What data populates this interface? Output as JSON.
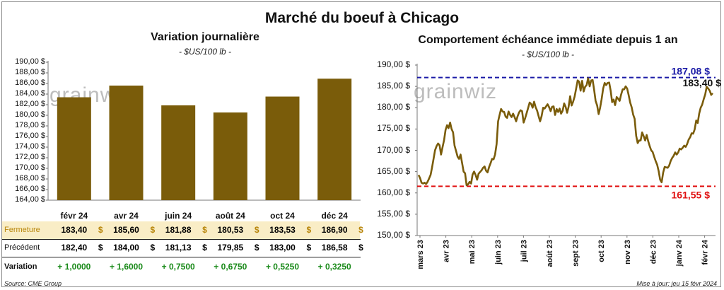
{
  "title": "Marché du boeuf à Chicago",
  "left": {
    "title": "Variation journalière",
    "subtitle": "- $US/100 lb -",
    "watermark": "grainwiz",
    "chart_data": {
      "type": "bar",
      "categories": [
        "févr 24",
        "avr 24",
        "juin 24",
        "août 24",
        "oct 24",
        "déc 24"
      ],
      "values": [
        183.4,
        185.6,
        181.88,
        180.53,
        183.53,
        186.9
      ],
      "ylim": [
        164,
        190
      ],
      "ytick_step": 2,
      "ytick_labels": [
        "164,00 $",
        "166,00 $",
        "168,00 $",
        "170,00 $",
        "172,00 $",
        "174,00 $",
        "176,00 $",
        "178,00 $",
        "180,00 $",
        "182,00 $",
        "184,00 $",
        "186,00 $",
        "188,00 $",
        "190,00 $"
      ],
      "bar_color": "#7a5c0a"
    },
    "table": {
      "rows": [
        {
          "label": "Fermeture",
          "unit": "$",
          "values": [
            "183,40",
            "185,60",
            "181,88",
            "180,53",
            "183,53",
            "186,90"
          ]
        },
        {
          "label": "Précédent",
          "unit": "$",
          "values": [
            "182,40",
            "184,00",
            "181,13",
            "179,85",
            "183,00",
            "186,58"
          ]
        },
        {
          "label": "Variation",
          "unit": "",
          "values": [
            "+ 1,0000",
            "+ 1,6000",
            "+ 0,7500",
            "+ 0,6750",
            "+ 0,5250",
            "+ 0,3250"
          ]
        }
      ],
      "highlight_color": "#f9edc6",
      "label_color": "#b8860b",
      "positive_color": "#1a8a1a"
    }
  },
  "right": {
    "title": "Comportement  échéance immédiate depuis 1 an",
    "subtitle": "- $US/100 lb -",
    "watermark": "grainwiz",
    "chart_data": {
      "type": "line",
      "ylim": [
        150,
        190
      ],
      "ytick_labels": [
        "150,00 $",
        "155,00 $",
        "160,00 $",
        "165,00 $",
        "170,00 $",
        "175,00 $",
        "180,00 $",
        "185,00 $",
        "190,00 $"
      ],
      "x_labels": [
        "mars 23",
        "avr 23",
        "mai 23",
        "juin 23",
        "juil 23",
        "août 23",
        "sept 23",
        "oct 23",
        "nov 23",
        "déc 23",
        "janv 24",
        "févr 24"
      ],
      "line_color": "#7a5c0a",
      "values": [
        164.2,
        163.5,
        162.4,
        162.2,
        162.4,
        162.1,
        162.6,
        163.4,
        164.2,
        166.0,
        168.0,
        170.0,
        171.0,
        171.6,
        171.2,
        169.0,
        170.8,
        172.4,
        174.8,
        175.9,
        175.2,
        176.5,
        175.0,
        174.2,
        171.1,
        169.8,
        168.5,
        168.0,
        169.0,
        167.0,
        165.0,
        164.6,
        161.8,
        162.0,
        162.6,
        162.2,
        164.3,
        165.0,
        164.2,
        163.1,
        164.5,
        164.9,
        165.3,
        165.9,
        166.2,
        165.2,
        164.8,
        166.1,
        167.0,
        168.0,
        167.9,
        169.0,
        171.5,
        176.8,
        178.3,
        179.7,
        179.1,
        179.0,
        177.9,
        177.6,
        179.1,
        178.3,
        177.8,
        178.6,
        177.8,
        176.8,
        178.0,
        178.9,
        179.4,
        179.2,
        176.5,
        177.5,
        178.7,
        179.9,
        181.2,
        180.9,
        180.0,
        181.4,
        180.1,
        179.3,
        178.0,
        176.8,
        178.0,
        180.0,
        179.8,
        180.3,
        180.8,
        180.1,
        179.2,
        180.2,
        180.3,
        178.3,
        179.7,
        179.0,
        179.8,
        178.6,
        179.3,
        181.0,
        180.2,
        178.8,
        180.2,
        182.7,
        180.5,
        181.4,
        182.6,
        184.5,
        186.4,
        186.1,
        184.0,
        186.3,
        183.8,
        184.9,
        185.3,
        186.9,
        185.0,
        186.4,
        186.5,
        184.2,
        181.6,
        180.5,
        178.5,
        180.0,
        182.0,
        184.5,
        185.8,
        185.3,
        185.8,
        185.9,
        184.0,
        181.3,
        181.9,
        180.6,
        182.5,
        182.1,
        181.6,
        183.1,
        184.3,
        184.3,
        185.0,
        184.5,
        183.0,
        181.2,
        180.1,
        178.4,
        177.4,
        173.4,
        171.7,
        172.3,
        172.3,
        174.2,
        173.3,
        172.3,
        173.6,
        172.2,
        171.0,
        170.0,
        169.6,
        168.5,
        167.5,
        166.6,
        165.1,
        163.1,
        162.5,
        164.8,
        166.1,
        166.0,
        165.9,
        166.4,
        167.5,
        168.2,
        168.7,
        169.5,
        169.0,
        169.5,
        170.4,
        170.2,
        170.6,
        171.1,
        170.8,
        171.5,
        172.5,
        173.1,
        174.0,
        173.9,
        174.9,
        177.0,
        176.4,
        178.6,
        180.0,
        180.7,
        182.0,
        183.1,
        184.9,
        184.5,
        184.0,
        183.0,
        183.4
      ],
      "reference_lines": [
        {
          "label": "187,08 $",
          "value": 187.08,
          "color": "#1a1aa6"
        },
        {
          "label": "161,55 $",
          "value": 161.55,
          "color": "#e01010"
        }
      ],
      "last_label": "183,40 $"
    }
  },
  "footer": {
    "source": "Source: CME Group",
    "updated": "Mise à jour: jeu 15 févr 2024"
  }
}
